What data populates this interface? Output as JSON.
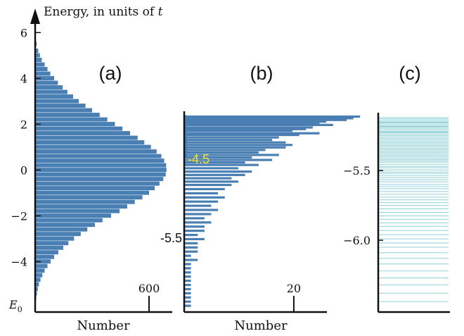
{
  "colors": {
    "bar": "#4a7fb3",
    "line": "#8fd0d6",
    "axis": "#111111",
    "highlight": "#f2e41b"
  },
  "chart_data": [
    {
      "panel": "(a)",
      "type": "bar",
      "orientation": "horizontal",
      "y_axis_label": "Energy, in units of t",
      "x_axis_label": "Number",
      "y_ticks": [
        "6",
        "4",
        "2",
        "0",
        "−2",
        "−4"
      ],
      "y_tick_values": [
        6,
        4,
        2,
        0,
        -2,
        -4
      ],
      "y_bottom_label": "E0",
      "x_tick": {
        "label": "600",
        "value": 600
      },
      "ylim": [
        -6.2,
        6.5
      ],
      "xlim": [
        0,
        780
      ],
      "series": {
        "energy": [
          5.5,
          5.2,
          5.0,
          4.8,
          4.6,
          4.4,
          4.2,
          4.0,
          3.8,
          3.6,
          3.4,
          3.2,
          3.0,
          2.8,
          2.6,
          2.4,
          2.2,
          2.0,
          1.8,
          1.6,
          1.4,
          1.2,
          1.0,
          0.8,
          0.6,
          0.4,
          0.2,
          0.0,
          -0.2,
          -0.4,
          -0.6,
          -0.8,
          -1.0,
          -1.2,
          -1.4,
          -1.6,
          -1.8,
          -2.0,
          -2.2,
          -2.4,
          -2.6,
          -2.8,
          -3.0,
          -3.2,
          -3.4,
          -3.6,
          -3.8,
          -4.0,
          -4.2,
          -4.4,
          -4.6,
          -4.8,
          -5.0,
          -5.2,
          -5.4,
          -5.6,
          -5.8
        ],
        "count": [
          8,
          16,
          25,
          35,
          50,
          65,
          80,
          100,
          120,
          145,
          170,
          200,
          230,
          265,
          300,
          340,
          380,
          420,
          460,
          500,
          540,
          575,
          610,
          640,
          665,
          680,
          690,
          692,
          688,
          675,
          655,
          630,
          600,
          565,
          525,
          485,
          445,
          400,
          355,
          315,
          275,
          240,
          205,
          175,
          148,
          122,
          100,
          82,
          65,
          50,
          38,
          28,
          20,
          14,
          9,
          6,
          3
        ]
      }
    },
    {
      "panel": "(b)",
      "type": "bar",
      "orientation": "horizontal",
      "x_axis_label": "Number",
      "tick_labels": [
        "-4.5",
        "-5.5"
      ],
      "tick_values": [
        -4.5,
        -5.5
      ],
      "x_tick": {
        "label": "20",
        "value": 20
      },
      "ylim": [
        -6.5,
        -4.15
      ],
      "xlim": [
        0,
        27
      ],
      "series": {
        "energy": [
          -4.18,
          -4.2,
          -4.22,
          -4.24,
          -4.26,
          -4.28,
          -4.31,
          -4.33,
          -4.35,
          -4.38,
          -4.4,
          -4.43,
          -4.46,
          -4.49,
          -4.52,
          -4.55,
          -4.58,
          -4.61,
          -4.64,
          -4.67,
          -4.7,
          -4.73,
          -4.76,
          -4.8,
          -4.84,
          -4.88,
          -4.92,
          -4.96,
          -5.0,
          -5.05,
          -5.1,
          -5.15,
          -5.2,
          -5.25,
          -5.3,
          -5.35,
          -5.4,
          -5.45,
          -5.5,
          -5.55,
          -5.6,
          -5.65,
          -5.7,
          -5.75,
          -5.8,
          -5.85,
          -5.9,
          -5.95,
          -6.0,
          -6.05,
          -6.1,
          -6.15,
          -6.2,
          -6.25,
          -6.3,
          -6.35,
          -6.4,
          -6.45
        ],
        "count": [
          26,
          25,
          24,
          21,
          20,
          22,
          19,
          18,
          16,
          20,
          17,
          14,
          13,
          15,
          16,
          15,
          12,
          11,
          14,
          10,
          13,
          9,
          11,
          8,
          10,
          9,
          7,
          8,
          7,
          6,
          5,
          6,
          5,
          4,
          5,
          4,
          3,
          4,
          3,
          3,
          2,
          3,
          2,
          2,
          2,
          1,
          2,
          1,
          1,
          1,
          1,
          1,
          1,
          1,
          1,
          1,
          1,
          1
        ]
      }
    },
    {
      "panel": "(c)",
      "type": "line",
      "orientation": "horizontal",
      "tick_labels": [
        "−5.5",
        "−6.0"
      ],
      "tick_values": [
        -5.5,
        -6.0
      ],
      "ylim": [
        -6.5,
        -5.1
      ],
      "levels": [
        -5.12,
        -5.13,
        -5.14,
        -5.15,
        -5.155,
        -5.16,
        -5.17,
        -5.18,
        -5.185,
        -5.19,
        -5.2,
        -5.21,
        -5.22,
        -5.225,
        -5.23,
        -5.24,
        -5.25,
        -5.26,
        -5.27,
        -5.28,
        -5.29,
        -5.3,
        -5.31,
        -5.32,
        -5.33,
        -5.34,
        -5.35,
        -5.36,
        -5.37,
        -5.38,
        -5.39,
        -5.4,
        -5.41,
        -5.42,
        -5.43,
        -5.44,
        -5.455,
        -5.47,
        -5.48,
        -5.495,
        -5.51,
        -5.52,
        -5.535,
        -5.55,
        -5.565,
        -5.58,
        -5.6,
        -5.615,
        -5.63,
        -5.65,
        -5.67,
        -5.69,
        -5.71,
        -5.73,
        -5.75,
        -5.775,
        -5.8,
        -5.825,
        -5.85,
        -5.875,
        -5.9,
        -5.93,
        -5.96,
        -5.99,
        -6.02,
        -6.05,
        -6.09,
        -6.13,
        -6.17,
        -6.22,
        -6.27,
        -6.32,
        -6.38,
        -6.44
      ]
    }
  ]
}
